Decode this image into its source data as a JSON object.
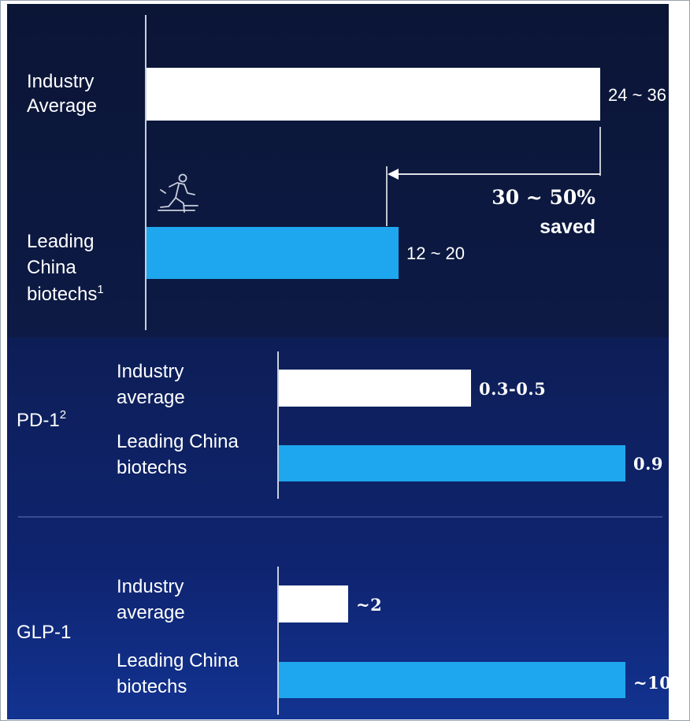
{
  "colors": {
    "panel_top": "#0b1536",
    "panel_bottom": "#0f2470",
    "bar_industry": "#ffffff",
    "bar_china": "#1ea7ee",
    "text": "#ffffff",
    "axis": "#c9cfdc"
  },
  "icons": {
    "runner": "running-person-icon",
    "saved_arrow": "left-arrow-icon"
  },
  "chart_data": [
    {
      "type": "bar",
      "orientation": "horizontal",
      "categories": [
        "Industry\nAverage",
        "Leading\nChina\nbiotechs1"
      ],
      "category_lines": [
        [
          "Industry",
          "Average"
        ],
        [
          "Leading",
          "China",
          "biotechs"
        ]
      ],
      "category_superscripts": [
        "",
        "1"
      ],
      "values": [
        36,
        20
      ],
      "range_low": [
        24,
        12
      ],
      "value_labels": [
        "24 ~ 36",
        "12 ~ 20"
      ],
      "xlim": [
        0,
        36
      ],
      "annotation": {
        "lines": [
          "30 ~ 50%",
          "saved"
        ]
      }
    },
    {
      "type": "bar",
      "orientation": "horizontal",
      "group_label": "PD-1",
      "group_superscript": "2",
      "categories": [
        "Industry average",
        "Leading China biotechs"
      ],
      "category_lines": [
        [
          "Industry",
          "average"
        ],
        [
          "Leading China",
          "biotechs"
        ]
      ],
      "values": [
        0.5,
        0.9
      ],
      "range_low": [
        0.3,
        0.9
      ],
      "value_labels": [
        "0.3-0.5",
        "0.9"
      ],
      "xlim": [
        0,
        0.9
      ]
    },
    {
      "type": "bar",
      "orientation": "horizontal",
      "group_label": "GLP-1",
      "categories": [
        "Industry average",
        "Leading China biotechs"
      ],
      "category_lines": [
        [
          "Industry",
          "average"
        ],
        [
          "Leading China",
          "biotechs"
        ]
      ],
      "values": [
        2,
        10
      ],
      "value_labels": [
        "~2",
        "~10"
      ],
      "xlim": [
        0,
        10
      ]
    }
  ]
}
